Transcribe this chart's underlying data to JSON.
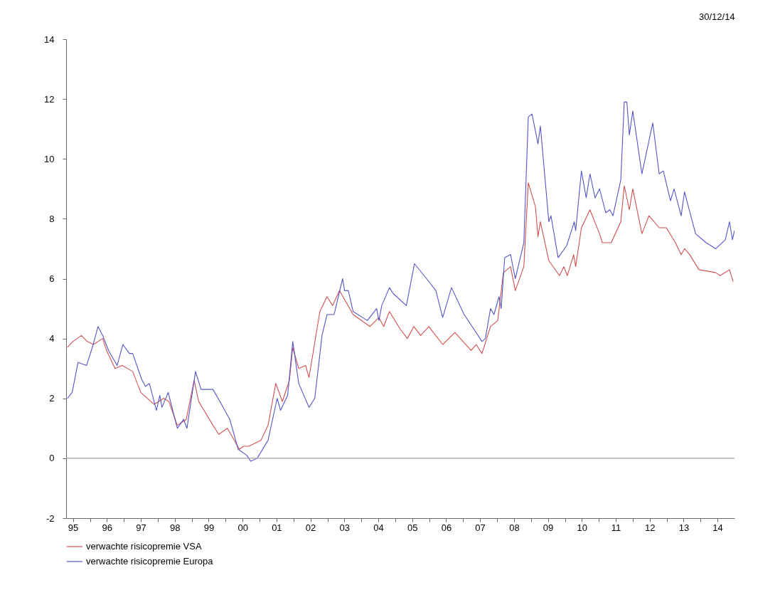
{
  "chart_data": {
    "type": "line",
    "annotations": [
      "30/12/14"
    ],
    "xlim": [
      "1995-04-19",
      "2014-12-31"
    ],
    "ylim": [
      -2,
      14
    ],
    "yticks": [
      -2,
      0,
      2,
      4,
      6,
      8,
      10,
      12,
      14
    ],
    "xticks": [
      {
        "value": "1995-07-01",
        "label": "95"
      },
      {
        "value": "1996-01-01",
        "label": null
      },
      {
        "value": "1996-07-01",
        "label": "96"
      },
      {
        "value": "1997-01-01",
        "label": null
      },
      {
        "value": "1997-07-01",
        "label": "97"
      },
      {
        "value": "1998-01-01",
        "label": null
      },
      {
        "value": "1998-07-01",
        "label": "98"
      },
      {
        "value": "1999-01-01",
        "label": null
      },
      {
        "value": "1999-07-01",
        "label": "99"
      },
      {
        "value": "2000-01-01",
        "label": null
      },
      {
        "value": "2000-07-01",
        "label": "00"
      },
      {
        "value": "2001-01-01",
        "label": null
      },
      {
        "value": "2001-07-01",
        "label": "01"
      },
      {
        "value": "2002-01-01",
        "label": null
      },
      {
        "value": "2002-07-01",
        "label": "02"
      },
      {
        "value": "2003-01-01",
        "label": null
      },
      {
        "value": "2003-07-01",
        "label": "03"
      },
      {
        "value": "2004-01-01",
        "label": null
      },
      {
        "value": "2004-07-01",
        "label": "04"
      },
      {
        "value": "2005-01-01",
        "label": null
      },
      {
        "value": "2005-07-01",
        "label": "05"
      },
      {
        "value": "2006-01-01",
        "label": null
      },
      {
        "value": "2006-07-01",
        "label": "06"
      },
      {
        "value": "2007-01-01",
        "label": null
      },
      {
        "value": "2007-07-01",
        "label": "07"
      },
      {
        "value": "2008-01-01",
        "label": null
      },
      {
        "value": "2008-07-01",
        "label": "08"
      },
      {
        "value": "2009-01-01",
        "label": null
      },
      {
        "value": "2009-07-01",
        "label": "09"
      },
      {
        "value": "2010-01-01",
        "label": null
      },
      {
        "value": "2010-07-01",
        "label": "10"
      },
      {
        "value": "2011-01-01",
        "label": null
      },
      {
        "value": "2011-07-01",
        "label": "11"
      },
      {
        "value": "2012-01-01",
        "label": null
      },
      {
        "value": "2012-07-01",
        "label": "12"
      },
      {
        "value": "2013-01-01",
        "label": null
      },
      {
        "value": "2013-07-01",
        "label": "13"
      },
      {
        "value": "2014-01-01",
        "label": null
      },
      {
        "value": "2014-07-01",
        "label": "14"
      }
    ],
    "grid": false,
    "legend": "bottom left",
    "line_style": "solid",
    "ref_lines": [
      {
        "axis": "y",
        "value": 0,
        "color": "#a0a0a0"
      }
    ],
    "series": [
      {
        "name": "verwachte risicopremie VSA",
        "color": "#d05050",
        "x": [
          "1995-05-03",
          "1995-07-01",
          "1995-10-01",
          "1995-12-02",
          "1996-02-07",
          "1996-05-17",
          "1996-06-27",
          "1996-09-27",
          "1996-12-13",
          "1997-04-04",
          "1997-07-01",
          "1997-11-21",
          "1998-03-02",
          "1998-04-29",
          "1998-07-29",
          "1998-11-03",
          "1999-01-26",
          "1999-03-16",
          "1999-08-17",
          "1999-10-19",
          "2000-01-19",
          "2000-05-28",
          "2000-07-11",
          "2000-09-05",
          "2001-01-15",
          "2001-04-01",
          "2001-06-23",
          "2001-09-02",
          "2001-11-17",
          "2001-12-23",
          "2002-02-25",
          "2002-05-10",
          "2002-06-16",
          "2002-10-11",
          "2002-12-27",
          "2003-02-25",
          "2003-05-10",
          "2003-10-04",
          "2004-04-01",
          "2004-07-08",
          "2004-08-28",
          "2004-10-29",
          "2005-02-25",
          "2005-05-10",
          "2005-07-19",
          "2005-10-01",
          "2005-12-27",
          "2006-05-25",
          "2006-10-04",
          "2007-03-27",
          "2007-05-21",
          "2007-07-22",
          "2007-10-22",
          "2008-01-08",
          "2008-03-09",
          "2008-05-25",
          "2008-07-15",
          "2008-10-15",
          "2008-12-02",
          "2009-02-17",
          "2009-03-16",
          "2009-04-11",
          "2009-07-11",
          "2009-11-03",
          "2009-12-20",
          "2010-01-26",
          "2010-04-04",
          "2010-04-26",
          "2010-06-27",
          "2010-09-27",
          "2011-01-08",
          "2011-02-07",
          "2011-05-14",
          "2011-08-25",
          "2011-10-01",
          "2011-11-25",
          "2012-01-01",
          "2012-04-08",
          "2012-06-23",
          "2012-10-11",
          "2012-12-27",
          "2013-04-04",
          "2013-06-05",
          "2013-07-11",
          "2013-09-05",
          "2013-12-13",
          "2014-06-13",
          "2014-07-29",
          "2014-11-07",
          "2014-12-16"
        ],
        "values": [
          3.7,
          3.9,
          4.1,
          3.9,
          3.8,
          4.0,
          3.6,
          3.0,
          3.1,
          2.9,
          2.2,
          1.8,
          2.0,
          1.9,
          1.1,
          1.3,
          2.6,
          1.9,
          1.1,
          0.8,
          1.0,
          0.3,
          0.4,
          0.4,
          0.6,
          1.1,
          2.5,
          1.9,
          2.6,
          3.7,
          3.0,
          3.1,
          2.7,
          4.9,
          5.4,
          5.1,
          5.6,
          4.8,
          4.4,
          4.7,
          4.4,
          4.9,
          4.3,
          4.0,
          4.4,
          4.1,
          4.4,
          3.8,
          4.2,
          3.6,
          3.8,
          3.5,
          4.4,
          4.6,
          6.2,
          6.4,
          5.6,
          6.4,
          9.2,
          8.4,
          7.4,
          7.9,
          6.6,
          6.1,
          6.4,
          6.1,
          6.8,
          6.4,
          7.7,
          8.3,
          7.5,
          7.2,
          7.2,
          7.9,
          9.1,
          8.3,
          9.0,
          7.5,
          8.1,
          7.7,
          7.7,
          7.2,
          6.8,
          7.0,
          6.8,
          6.3,
          6.2,
          6.1,
          6.3,
          5.9
        ]
      },
      {
        "name": "verwachte risicopremie Europa",
        "color": "#5555c8",
        "x": [
          "1995-05-03",
          "1995-06-23",
          "1995-08-25",
          "1995-11-25",
          "1996-01-26",
          "1996-03-27",
          "1996-05-17",
          "1996-07-19",
          "1996-10-19",
          "1996-12-20",
          "1997-02-28",
          "1997-04-04",
          "1997-07-15",
          "1997-08-21",
          "1997-10-01",
          "1997-12-16",
          "1998-01-22",
          "1998-02-14",
          "1998-04-22",
          "1998-07-29",
          "1998-10-04",
          "1998-11-10",
          "1999-02-10",
          "1999-04-11",
          "1999-08-17",
          "1999-11-17",
          "2000-02-14",
          "2000-05-14",
          "2000-08-14",
          "2000-09-27",
          "2000-12-05",
          "2001-04-01",
          "2001-07-08",
          "2001-08-14",
          "2001-10-29",
          "2001-12-23",
          "2002-02-25",
          "2002-06-16",
          "2002-08-17",
          "2002-11-03",
          "2002-12-27",
          "2003-03-13",
          "2003-06-13",
          "2003-07-04",
          "2003-08-14",
          "2003-10-04",
          "2004-03-05",
          "2004-06-13",
          "2004-07-08",
          "2004-08-07",
          "2004-10-29",
          "2004-12-09",
          "2005-04-29",
          "2005-07-26",
          "2005-12-02",
          "2006-03-13",
          "2006-05-25",
          "2006-08-28",
          "2007-01-11",
          "2007-04-29",
          "2007-07-22",
          "2007-08-28",
          "2007-10-22",
          "2007-11-28",
          "2008-01-22",
          "2008-02-14",
          "2008-03-23",
          "2008-05-25",
          "2008-07-15",
          "2008-10-15",
          "2008-12-02",
          "2009-01-11",
          "2009-03-16",
          "2009-04-11",
          "2009-07-11",
          "2009-08-03",
          "2009-10-19",
          "2010-01-19",
          "2010-04-11",
          "2010-04-26",
          "2010-06-27",
          "2010-08-17",
          "2010-09-27",
          "2010-11-21",
          "2011-01-08",
          "2011-03-16",
          "2011-04-29",
          "2011-06-02",
          "2011-08-25",
          "2011-10-01",
          "2011-10-29",
          "2011-11-25",
          "2012-01-01",
          "2012-04-08",
          "2012-08-03",
          "2012-10-11",
          "2012-11-25",
          "2013-02-10",
          "2013-03-20",
          "2013-06-05",
          "2013-07-11",
          "2013-11-07",
          "2014-02-28",
          "2014-06-13",
          "2014-09-23",
          "2014-11-07",
          "2014-12-09",
          "2014-12-30"
        ],
        "values": [
          2.0,
          2.2,
          3.2,
          3.1,
          3.7,
          4.4,
          4.1,
          3.6,
          3.1,
          3.8,
          3.5,
          3.5,
          2.6,
          2.4,
          2.5,
          1.6,
          2.1,
          1.7,
          2.2,
          1.0,
          1.3,
          1.0,
          2.9,
          2.3,
          2.3,
          1.8,
          1.3,
          0.3,
          0.1,
          -0.1,
          0.0,
          0.6,
          2.0,
          1.6,
          2.1,
          3.9,
          2.5,
          1.7,
          2.0,
          4.1,
          4.8,
          4.8,
          6.0,
          5.6,
          5.6,
          4.9,
          4.6,
          5.0,
          4.6,
          5.1,
          5.7,
          5.5,
          5.1,
          6.5,
          6.0,
          5.6,
          4.7,
          5.7,
          4.8,
          4.3,
          3.9,
          4.0,
          5.0,
          4.8,
          5.4,
          5.0,
          6.7,
          6.8,
          6.0,
          7.2,
          11.4,
          11.5,
          10.5,
          11.1,
          7.9,
          8.1,
          6.7,
          7.1,
          7.9,
          7.6,
          9.6,
          8.7,
          9.5,
          8.7,
          9.0,
          8.2,
          8.3,
          8.1,
          9.3,
          11.9,
          11.9,
          10.8,
          11.6,
          9.5,
          11.2,
          9.5,
          9.6,
          8.6,
          9.0,
          8.1,
          8.9,
          7.5,
          7.2,
          7.0,
          7.3,
          7.9,
          7.3,
          7.6
        ]
      }
    ]
  }
}
